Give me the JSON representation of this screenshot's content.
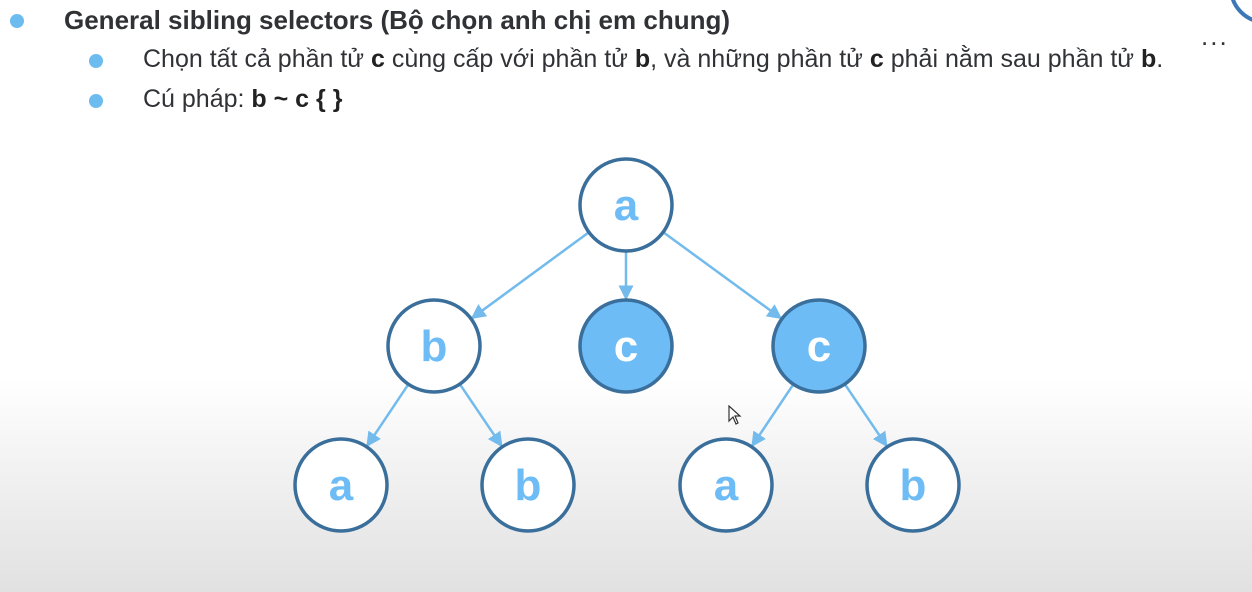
{
  "slide": {
    "bullet_1": {
      "text": "General sibling selectors (Bộ chọn anh chị em chung)"
    },
    "bullet_2": {
      "part_1": "Chọn tất cả phần tử ",
      "bold_1": "c",
      "part_2": " cùng cấp với phần tử ",
      "bold_2": "b",
      "part_3": ", và những phần tử ",
      "bold_3": "c",
      "part_4": " phải nằm sau phần tử ",
      "bold_4": "b",
      "part_5": "."
    },
    "bullet_3": {
      "part_1": "Cú pháp: ",
      "bold_1": "b ~ c { }"
    },
    "more_menu": "...",
    "icons": {
      "bullet": "bullet-dot-icon",
      "more": "more-dots-icon",
      "cursor": "mouse-cursor-icon"
    }
  },
  "tree": {
    "colors": {
      "edge": "#72bbec",
      "border": "#3a6f9c",
      "selected_fill": "#6dbcf5",
      "normal_fill": "#ffffff",
      "label_normal": "#6dbcf5",
      "label_selected": "#ffffff"
    },
    "nodes": [
      {
        "id": "root-a",
        "label": "a",
        "selected": false
      },
      {
        "id": "child-b",
        "label": "b",
        "selected": false
      },
      {
        "id": "child-c-1",
        "label": "c",
        "selected": true
      },
      {
        "id": "child-c-2",
        "label": "c",
        "selected": true
      },
      {
        "id": "grandchild-a-1",
        "label": "a",
        "selected": false
      },
      {
        "id": "grandchild-b-1",
        "label": "b",
        "selected": false
      },
      {
        "id": "grandchild-a-2",
        "label": "a",
        "selected": false
      },
      {
        "id": "grandchild-b-2",
        "label": "b",
        "selected": false
      }
    ],
    "edges": [
      {
        "from": "root-a",
        "to": "child-b"
      },
      {
        "from": "root-a",
        "to": "child-c-1"
      },
      {
        "from": "root-a",
        "to": "child-c-2"
      },
      {
        "from": "child-b",
        "to": "grandchild-a-1"
      },
      {
        "from": "child-b",
        "to": "grandchild-b-1"
      },
      {
        "from": "child-c-2",
        "to": "grandchild-a-2"
      },
      {
        "from": "child-c-2",
        "to": "grandchild-b-2"
      }
    ]
  }
}
